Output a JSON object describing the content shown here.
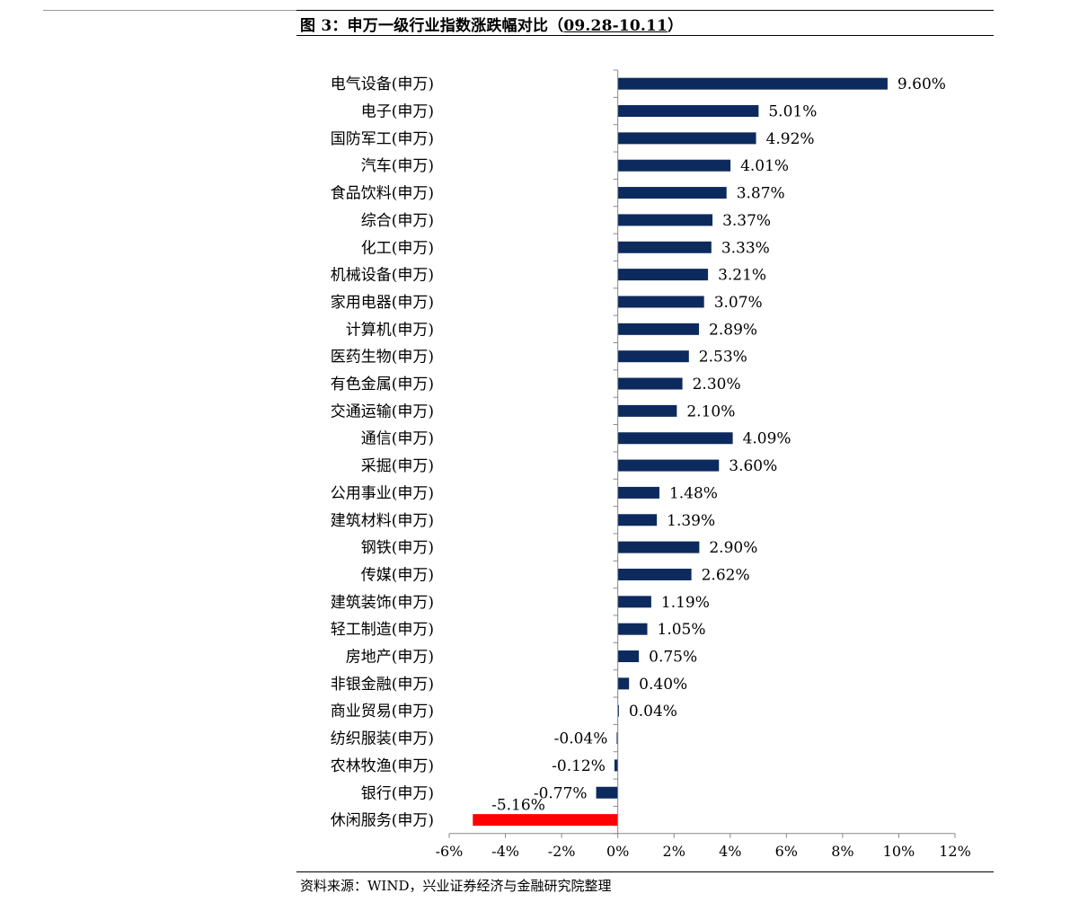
{
  "figure": {
    "title_prefix": "图 3：申万一级行业指数涨跌幅对比（",
    "title_period": "09.28-10.11",
    "title_suffix": "）",
    "source": "资料来源：WIND，兴业证券经济与金融研究院整理"
  },
  "chart_data": {
    "type": "bar",
    "orientation": "horizontal",
    "title": "图 3：申万一级行业指数涨跌幅对比（09.28-10.11）",
    "categories": [
      "电气设备(申万)",
      "电子(申万)",
      "国防军工(申万)",
      "汽车(申万)",
      "食品饮料(申万)",
      "综合(申万)",
      "化工(申万)",
      "机械设备(申万)",
      "家用电器(申万)",
      "计算机(申万)",
      "医药生物(申万)",
      "有色金属(申万)",
      "交通运输(申万)",
      "通信(申万)",
      "采掘(申万)",
      "公用事业(申万)",
      "建筑材料(申万)",
      "钢铁(申万)",
      "传媒(申万)",
      "建筑装饰(申万)",
      "轻工制造(申万)",
      "房地产(申万)",
      "非银金融(申万)",
      "商业贸易(申万)",
      "纺织服装(申万)",
      "农林牧渔(申万)",
      "银行(申万)",
      "休闲服务(申万)"
    ],
    "values": [
      9.6,
      5.01,
      4.92,
      4.01,
      3.87,
      3.37,
      3.33,
      3.21,
      3.07,
      2.89,
      2.53,
      2.3,
      2.1,
      4.09,
      3.6,
      1.48,
      1.39,
      2.9,
      2.62,
      1.19,
      1.05,
      0.75,
      0.4,
      0.04,
      -0.04,
      -0.12,
      -0.77,
      -5.16
    ],
    "labels": [
      "9.60%",
      "5.01%",
      "4.92%",
      "4.01%",
      "3.87%",
      "3.37%",
      "3.33%",
      "3.21%",
      "3.07%",
      "2.89%",
      "2.53%",
      "2.30%",
      "2.10%",
      "4.09%",
      "3.60%",
      "1.48%",
      "1.39%",
      "2.90%",
      "2.62%",
      "1.19%",
      "1.05%",
      "0.75%",
      "0.40%",
      "0.04%",
      "-0.04%",
      "-0.12%",
      "-0.77%",
      "-5.16%"
    ],
    "xlim": [
      -6,
      12
    ],
    "xticks": [
      -6,
      -4,
      -2,
      0,
      2,
      4,
      6,
      8,
      10,
      12
    ],
    "xtick_labels": [
      "-6%",
      "-4%",
      "-2%",
      "0%",
      "2%",
      "4%",
      "6%",
      "8%",
      "10%",
      "12%"
    ],
    "colors": {
      "default": "#0d2a5e",
      "highlight": "#ff0000"
    },
    "highlight_index": 27,
    "grid": false,
    "legend": "none"
  }
}
